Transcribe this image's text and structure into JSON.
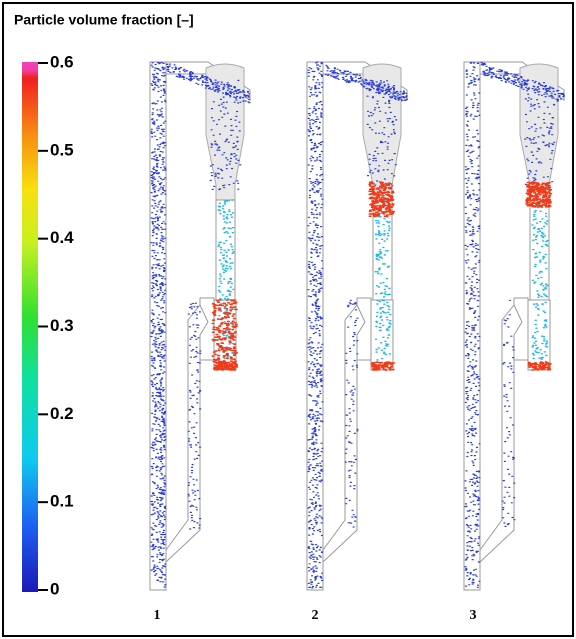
{
  "colorbar": {
    "title": "Particle volume fraction [–]",
    "range": [
      0,
      0.6
    ],
    "ticks": [
      0,
      0.1,
      0.2,
      0.3,
      0.4,
      0.5,
      0.6
    ]
  },
  "panels": [
    {
      "label": "1"
    },
    {
      "label": "2"
    },
    {
      "label": "3"
    }
  ]
}
